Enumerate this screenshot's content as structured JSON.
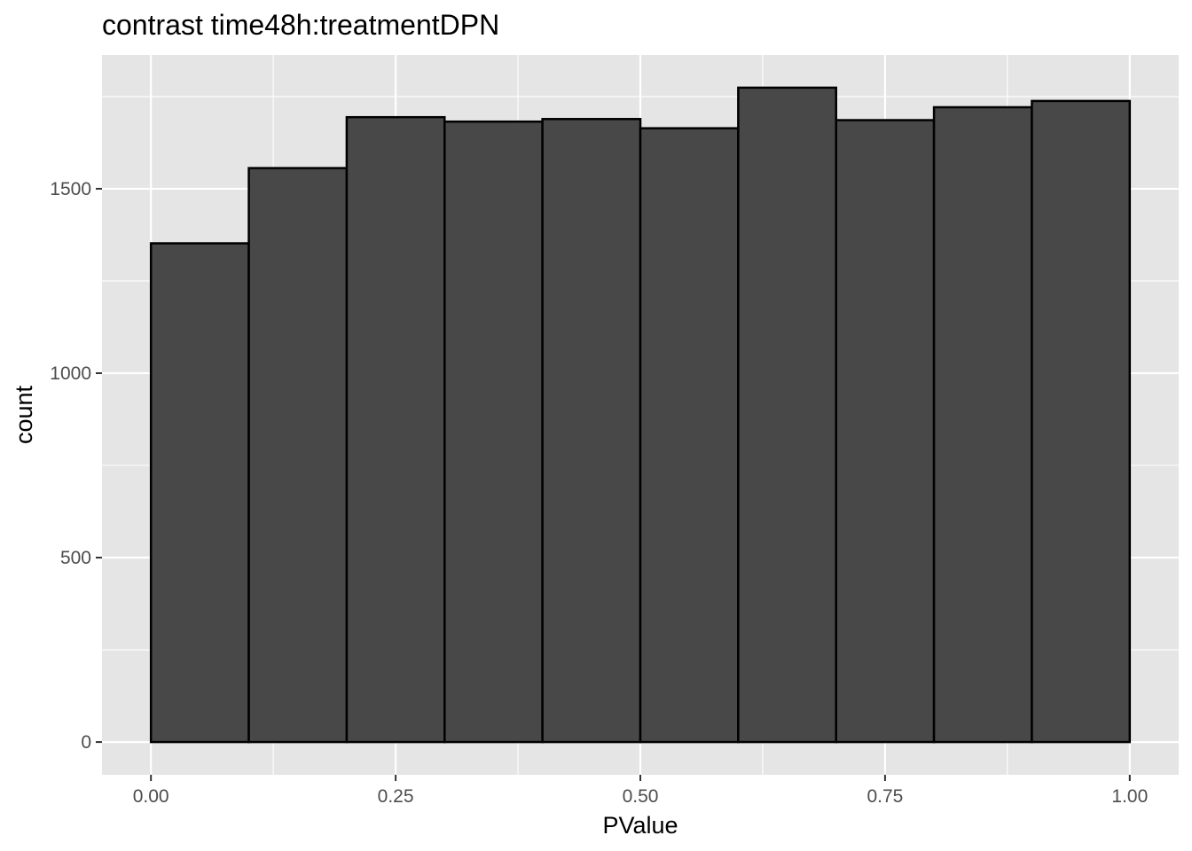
{
  "chart_data": {
    "type": "bar",
    "subtype": "histogram",
    "title": "contrast time48h:treatmentDPN",
    "xlabel": "PValue",
    "ylabel": "count",
    "bins": [
      {
        "x0": 0.0,
        "x1": 0.1,
        "count": 1352
      },
      {
        "x0": 0.1,
        "x1": 0.2,
        "count": 1556
      },
      {
        "x0": 0.2,
        "x1": 0.3,
        "count": 1694
      },
      {
        "x0": 0.3,
        "x1": 0.4,
        "count": 1682
      },
      {
        "x0": 0.4,
        "x1": 0.5,
        "count": 1689
      },
      {
        "x0": 0.5,
        "x1": 0.6,
        "count": 1664
      },
      {
        "x0": 0.6,
        "x1": 0.7,
        "count": 1774
      },
      {
        "x0": 0.7,
        "x1": 0.8,
        "count": 1686
      },
      {
        "x0": 0.8,
        "x1": 0.9,
        "count": 1721
      },
      {
        "x0": 0.9,
        "x1": 1.0,
        "count": 1738
      }
    ],
    "xlim": [
      -0.05,
      1.05
    ],
    "ylim": [
      -88.7,
      1862.7
    ],
    "x_ticks": [
      {
        "value": 0.0,
        "label": "0.00"
      },
      {
        "value": 0.25,
        "label": "0.25"
      },
      {
        "value": 0.5,
        "label": "0.50"
      },
      {
        "value": 0.75,
        "label": "0.75"
      },
      {
        "value": 1.0,
        "label": "1.00"
      }
    ],
    "y_ticks": [
      {
        "value": 0,
        "label": "0"
      },
      {
        "value": 500,
        "label": "500"
      },
      {
        "value": 1000,
        "label": "1000"
      },
      {
        "value": 1500,
        "label": "1500"
      }
    ],
    "x_minor_ticks": [
      0.125,
      0.375,
      0.625,
      0.875
    ],
    "y_minor_ticks": [
      250,
      750,
      1250,
      1750
    ],
    "grid": true,
    "legend": "none",
    "colors": {
      "panel_background": "#e5e5e5",
      "grid_line": "#ffffff",
      "bar_fill": "#484848",
      "bar_outline": "#000000",
      "tick_label": "#4d4d4d",
      "tick_mark": "#333333"
    }
  }
}
